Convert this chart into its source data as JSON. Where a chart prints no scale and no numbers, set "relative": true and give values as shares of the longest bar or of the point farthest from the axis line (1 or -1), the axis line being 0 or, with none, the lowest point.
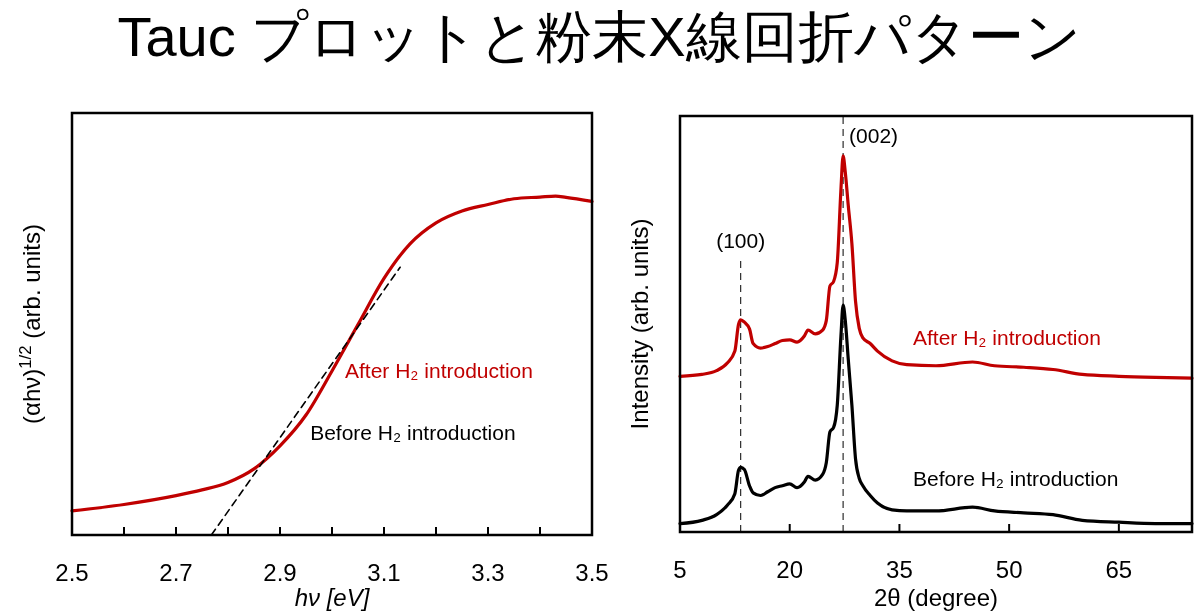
{
  "chart_data": [
    {
      "type": "line",
      "title": "Tauc プロットと粉末X線回折パターン",
      "xlabel": "hν [eV]",
      "ylabel": "(αhν)$^{1/2}$ (arb. units)",
      "relative": true,
      "xlim": [
        2.5,
        3.5
      ],
      "xticks": [
        2.5,
        {
          "value": 2.6,
          "label": null
        },
        2.7,
        {
          "value": 2.8,
          "label": null
        },
        2.9,
        {
          "value": 3.0,
          "label": null
        },
        3.1,
        {
          "value": 3.2,
          "label": null
        },
        3.3,
        {
          "value": 3.4,
          "label": null
        },
        3.5
      ],
      "x": [
        2.5,
        2.6,
        2.7,
        2.75,
        2.8,
        2.85,
        2.9,
        2.95,
        3.0,
        3.05,
        3.1,
        3.15,
        3.2,
        3.25,
        3.3,
        3.35,
        3.4,
        3.43,
        3.45,
        3.5
      ],
      "series": [
        {
          "name": "Before H₂ introduction",
          "color": "#000000",
          "values": [
            null,
            null,
            null,
            null,
            null,
            null,
            null,
            null,
            null,
            null,
            null,
            null,
            null,
            null,
            null,
            null,
            null,
            null,
            null,
            null
          ]
        },
        {
          "name": "After H₂ introduction",
          "color": "#c00000",
          "values": [
            0.071,
            0.09,
            0.116,
            0.133,
            0.155,
            0.195,
            0.263,
            0.354,
            0.484,
            0.621,
            0.757,
            0.859,
            0.921,
            0.956,
            0.975,
            0.992,
            0.997,
            1.0,
            0.996,
            0.984
          ]
        },
        {
          "type": "line",
          "color": "#000000",
          "line_style": "dashed",
          "x": [
            2.768,
            3.131
          ],
          "values": [
            0,
            0.79
          ]
        }
      ]
    },
    {
      "type": "line",
      "xlabel": "2θ (degree)",
      "ylabel": "Intensity (arb. units)",
      "relative": true,
      "xlim": [
        5,
        75
      ],
      "xticks": [
        5,
        20,
        35,
        50,
        65
      ],
      "x": [
        5,
        8,
        10,
        11.5,
        12.5,
        13,
        13.3,
        13.8,
        14.5,
        15,
        16,
        17,
        18,
        19,
        20,
        21,
        22,
        22.5,
        23.5,
        24.5,
        25,
        25.5,
        26,
        26.5,
        27,
        27.3,
        27.6,
        28,
        28.5,
        29,
        29.5,
        30,
        31,
        32,
        34,
        36,
        40,
        45,
        48,
        52,
        56,
        60,
        65,
        70,
        75
      ],
      "series": [
        {
          "name": "After H₂ introduction",
          "color": "#c00000",
          "values": [
            0.414,
            0.419,
            0.429,
            0.45,
            0.481,
            0.552,
            0.564,
            0.558,
            0.54,
            0.501,
            0.489,
            0.493,
            0.501,
            0.509,
            0.511,
            0.505,
            0.521,
            0.537,
            0.527,
            0.537,
            0.562,
            0.654,
            0.666,
            0.716,
            0.91,
            1.0,
            0.956,
            0.869,
            0.767,
            0.613,
            0.542,
            0.516,
            0.501,
            0.481,
            0.455,
            0.445,
            0.442,
            0.452,
            0.442,
            0.438,
            0.432,
            0.419,
            0.414,
            0.411,
            0.409
          ]
        },
        {
          "name": "Before H₂ introduction",
          "color": "#000000",
          "values": [
            0.0225,
            0.031,
            0.046,
            0.072,
            0.102,
            0.164,
            0.172,
            0.166,
            0.123,
            0.104,
            0.097,
            0.107,
            0.118,
            0.123,
            0.128,
            0.118,
            0.133,
            0.148,
            0.138,
            0.153,
            0.184,
            0.266,
            0.278,
            0.337,
            0.52,
            0.603,
            0.562,
            0.46,
            0.337,
            0.194,
            0.143,
            0.123,
            0.097,
            0.077,
            0.059,
            0.056,
            0.056,
            0.066,
            0.056,
            0.051,
            0.046,
            0.031,
            0.026,
            0.0225,
            0.0225
          ]
        }
      ],
      "annotations": [
        "(100)",
        "(002)"
      ],
      "ref_lines": [
        {
          "axis": "x",
          "value": 13.3,
          "line_style": "dashed"
        },
        {
          "axis": "x",
          "value": 27.3,
          "line_style": "dashed"
        }
      ]
    }
  ]
}
